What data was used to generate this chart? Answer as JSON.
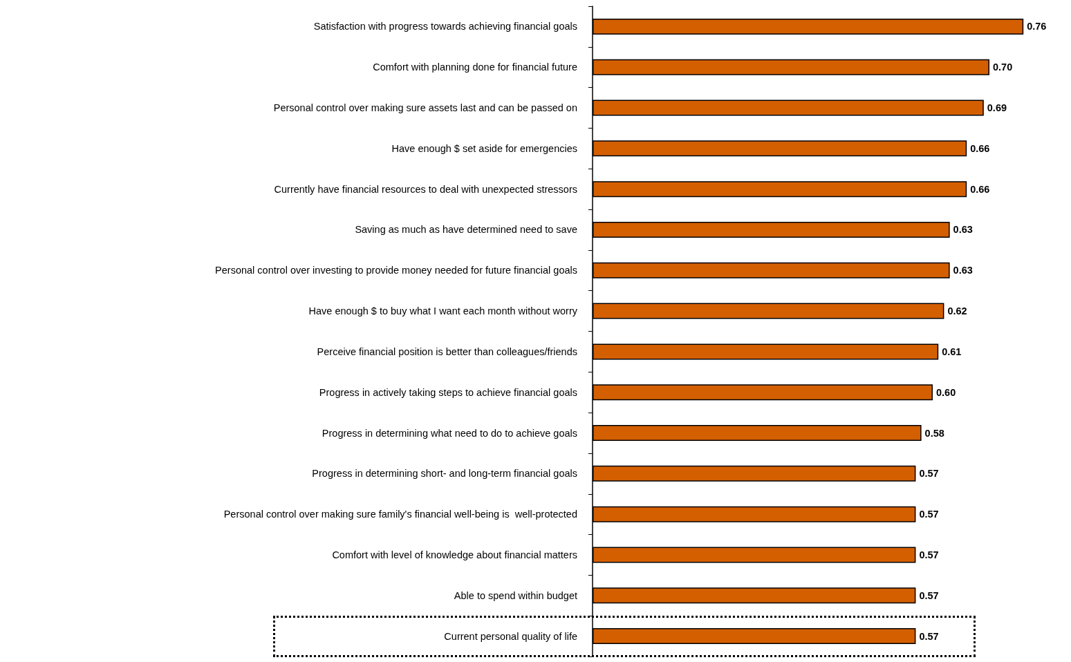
{
  "chart_data": {
    "type": "bar",
    "orientation": "horizontal",
    "color": "#d35f00",
    "value_labels": [
      "0.76",
      "0.70",
      "0.69",
      "0.66",
      "0.66",
      "0.63",
      "0.63",
      "0.62",
      "0.61",
      "0.60",
      "0.58",
      "0.57",
      "0.57",
      "0.57",
      "0.57",
      "0.57"
    ],
    "categories": [
      "Satisfaction with progress towards achieving financial goals",
      "Comfort with planning done for financial future",
      "Personal control over making sure assets last and can be passed on",
      "Have enough $ set aside for emergencies",
      "Currently have financial resources to deal with unexpected stressors",
      "Saving as much as have determined need to save",
      "Personal control over investing to provide money needed for future financial goals",
      "Have enough $ to buy what I want each month without worry",
      "Perceive financial position is better than colleagues/friends",
      "Progress in actively taking steps to achieve financial goals",
      "Progress in determining what need to do to achieve goals",
      "Progress in determining short- and long-term financial goals",
      "Personal control over making sure family's financial well-being is  well-protected",
      "Comfort with level of knowledge about financial matters",
      "Able to spend within budget",
      "Current personal quality of life"
    ],
    "values": [
      0.76,
      0.7,
      0.69,
      0.66,
      0.66,
      0.63,
      0.63,
      0.62,
      0.61,
      0.6,
      0.58,
      0.57,
      0.57,
      0.57,
      0.57,
      0.57
    ]
  }
}
